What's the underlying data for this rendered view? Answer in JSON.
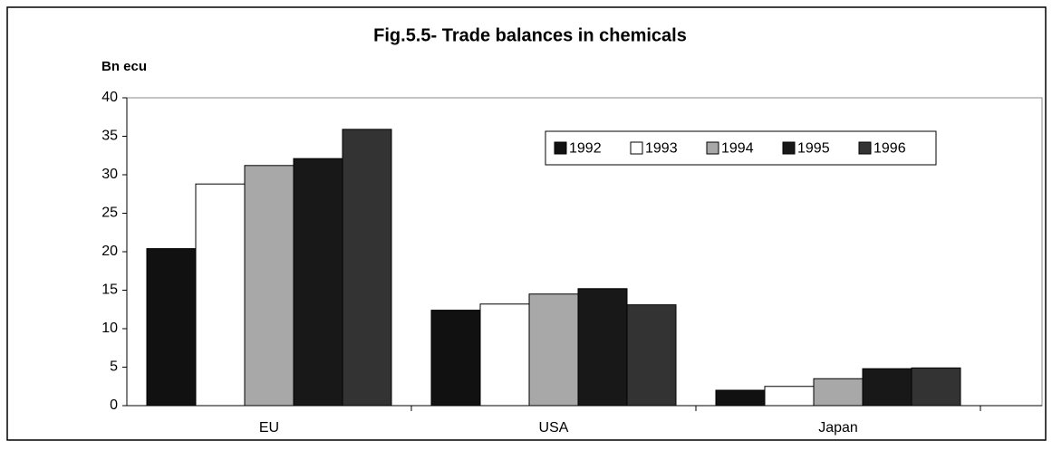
{
  "chart_data": {
    "type": "bar",
    "title": "Fig.5.5- Trade balances in chemicals",
    "y_label": "Bn ecu",
    "categories": [
      "EU",
      "USA",
      "Japan"
    ],
    "series": [
      {
        "name": "1992",
        "color": "#111111",
        "values": [
          20.4,
          12.4,
          2.0
        ]
      },
      {
        "name": "1993",
        "color": "#ffffff",
        "values": [
          28.8,
          13.2,
          2.5
        ]
      },
      {
        "name": "1994",
        "color": "#a8a8a8",
        "values": [
          31.2,
          14.5,
          3.5
        ]
      },
      {
        "name": "1995",
        "color": "#181818",
        "values": [
          32.1,
          15.2,
          4.8
        ]
      },
      {
        "name": "1996",
        "color": "#333333",
        "values": [
          35.9,
          13.1,
          4.9
        ]
      }
    ],
    "ylim": [
      0,
      40
    ],
    "yticks": [
      0,
      5,
      10,
      15,
      20,
      25,
      30,
      35,
      40
    ],
    "legend": "top-right"
  }
}
